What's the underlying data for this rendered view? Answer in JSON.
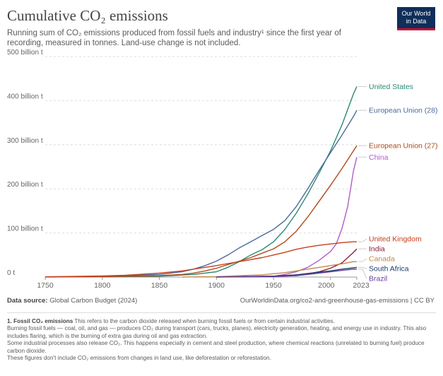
{
  "header": {
    "title": "Cumulative CO₂ emissions",
    "subtitle": "Running sum of CO₂ emissions produced from fossil fuels and industry¹ since the first year of recording, measured in tonnes. Land-use change is not included.",
    "logo_line1": "Our World",
    "logo_line2": "in Data",
    "logo_bg": "#0f2e5a",
    "logo_accent": "#c8102e"
  },
  "footer": {
    "source_label": "Data source:",
    "source_text": "Global Carbon Budget (2024)",
    "credit": "OurWorldinData.org/co2-and-greenhouse-gas-emissions | CC BY",
    "footnote_title": "1. Fossil CO₂ emissions",
    "footnote_lines": [
      "This refers to the carbon dioxide released when burning fossil fuels or from certain industrial activities.",
      "Burning fossil fuels — coal, oil, and gas — produces CO₂ during transport (cars, trucks, planes), electricity generation, heating, and energy use in industry. This also includes flaring, which is the burning of extra gas during oil and gas extraction.",
      "Some industrial processes also release CO₂. This happens especially in cement and steel production, where chemical reactions (unrelated to burning fuel) produce carbon dioxide.",
      "These figures don't include CO₂ emissions from changes in land use, like deforestation or reforestation."
    ]
  },
  "chart_data": {
    "type": "line",
    "title": "Cumulative CO₂ emissions",
    "xlabel": "",
    "ylabel": "",
    "xlim": [
      1750,
      2023
    ],
    "ylim": [
      0,
      500
    ],
    "x_ticks": [
      1750,
      1800,
      1850,
      1900,
      1950,
      2000,
      2023
    ],
    "y_ticks": [
      0,
      100,
      200,
      300,
      400,
      500
    ],
    "y_tick_labels": [
      "0 t",
      "100 billion t",
      "200 billion t",
      "300 billion t",
      "400 billion t",
      "500 billion t"
    ],
    "y_unit": "billion t",
    "grid": "horizontal dotted",
    "legend": "end-of-line labels on right",
    "series": [
      {
        "name": "United States",
        "color": "#2a8a73",
        "points": [
          [
            1800,
            0.5
          ],
          [
            1850,
            2
          ],
          [
            1880,
            6
          ],
          [
            1900,
            12
          ],
          [
            1910,
            22
          ],
          [
            1920,
            35
          ],
          [
            1930,
            50
          ],
          [
            1940,
            62
          ],
          [
            1950,
            80
          ],
          [
            1960,
            108
          ],
          [
            1970,
            145
          ],
          [
            1980,
            188
          ],
          [
            1990,
            236
          ],
          [
            2000,
            286
          ],
          [
            2010,
            345
          ],
          [
            2020,
            415
          ],
          [
            2023,
            432
          ]
        ]
      },
      {
        "name": "European Union (28)",
        "color": "#4c6a9c",
        "points": [
          [
            1750,
            0.5
          ],
          [
            1800,
            1.5
          ],
          [
            1850,
            6
          ],
          [
            1870,
            12
          ],
          [
            1880,
            18
          ],
          [
            1890,
            26
          ],
          [
            1900,
            36
          ],
          [
            1910,
            50
          ],
          [
            1920,
            66
          ],
          [
            1930,
            80
          ],
          [
            1940,
            94
          ],
          [
            1950,
            108
          ],
          [
            1960,
            128
          ],
          [
            1970,
            160
          ],
          [
            1980,
            200
          ],
          [
            1990,
            242
          ],
          [
            2000,
            282
          ],
          [
            2010,
            322
          ],
          [
            2020,
            364
          ],
          [
            2023,
            378
          ]
        ]
      },
      {
        "name": "European Union (27)",
        "color": "#b04a1c",
        "points": [
          [
            1750,
            0.2
          ],
          [
            1800,
            1
          ],
          [
            1850,
            3
          ],
          [
            1870,
            6
          ],
          [
            1880,
            9
          ],
          [
            1890,
            14
          ],
          [
            1900,
            20
          ],
          [
            1910,
            28
          ],
          [
            1920,
            36
          ],
          [
            1930,
            44
          ],
          [
            1940,
            54
          ],
          [
            1950,
            64
          ],
          [
            1960,
            80
          ],
          [
            1970,
            104
          ],
          [
            1980,
            136
          ],
          [
            1990,
            172
          ],
          [
            2000,
            208
          ],
          [
            2010,
            246
          ],
          [
            2020,
            286
          ],
          [
            2023,
            298
          ]
        ]
      },
      {
        "name": "China",
        "color": "#b15cc7",
        "points": [
          [
            1900,
            0.1
          ],
          [
            1930,
            0.5
          ],
          [
            1950,
            2
          ],
          [
            1960,
            6
          ],
          [
            1970,
            12
          ],
          [
            1980,
            22
          ],
          [
            1990,
            38
          ],
          [
            2000,
            58
          ],
          [
            2005,
            75
          ],
          [
            2010,
            110
          ],
          [
            2015,
            160
          ],
          [
            2020,
            240
          ],
          [
            2023,
            272
          ]
        ]
      },
      {
        "name": "United Kingdom",
        "color": "#c4411d",
        "points": [
          [
            1750,
            0.5
          ],
          [
            1800,
            2.5
          ],
          [
            1820,
            4
          ],
          [
            1850,
            9
          ],
          [
            1870,
            14
          ],
          [
            1880,
            18
          ],
          [
            1900,
            26
          ],
          [
            1920,
            35
          ],
          [
            1940,
            44
          ],
          [
            1950,
            50
          ],
          [
            1960,
            56
          ],
          [
            1970,
            63
          ],
          [
            1980,
            68
          ],
          [
            1990,
            72
          ],
          [
            2000,
            75
          ],
          [
            2010,
            78
          ],
          [
            2020,
            80
          ],
          [
            2023,
            80
          ]
        ]
      },
      {
        "name": "India",
        "color": "#8a1e3a",
        "points": [
          [
            1900,
            0.3
          ],
          [
            1950,
            2
          ],
          [
            1970,
            5
          ],
          [
            1980,
            7
          ],
          [
            1990,
            12
          ],
          [
            2000,
            20
          ],
          [
            2010,
            32
          ],
          [
            2020,
            56
          ],
          [
            2023,
            64
          ]
        ]
      },
      {
        "name": "Canada",
        "color": "#c2894b",
        "points": [
          [
            1870,
            0.2
          ],
          [
            1900,
            1
          ],
          [
            1920,
            3
          ],
          [
            1940,
            5
          ],
          [
            1960,
            10
          ],
          [
            1970,
            14
          ],
          [
            1980,
            18
          ],
          [
            1990,
            22
          ],
          [
            2000,
            26
          ],
          [
            2010,
            30
          ],
          [
            2020,
            35
          ],
          [
            2023,
            35
          ]
        ]
      },
      {
        "name": "South Africa",
        "color": "#1c3d68",
        "points": [
          [
            1900,
            0.2
          ],
          [
            1950,
            2
          ],
          [
            1970,
            5
          ],
          [
            1980,
            8
          ],
          [
            1990,
            11
          ],
          [
            2000,
            14
          ],
          [
            2010,
            18
          ],
          [
            2020,
            21
          ],
          [
            2023,
            22
          ]
        ]
      },
      {
        "name": "Brazil",
        "color": "#6b3da0",
        "points": [
          [
            1900,
            0.1
          ],
          [
            1950,
            1
          ],
          [
            1970,
            3
          ],
          [
            1980,
            6
          ],
          [
            1990,
            9
          ],
          [
            2000,
            12
          ],
          [
            2010,
            15
          ],
          [
            2020,
            18
          ],
          [
            2023,
            18
          ]
        ]
      }
    ],
    "end_labels": [
      {
        "name": "United States",
        "value": 432
      },
      {
        "name": "European Union (28)",
        "value": 378
      },
      {
        "name": "European Union (27)",
        "value": 298
      },
      {
        "name": "China",
        "value": 272
      },
      {
        "name": "United Kingdom",
        "value": 80
      },
      {
        "name": "India",
        "value": 64
      },
      {
        "name": "Canada",
        "value": 35
      },
      {
        "name": "South Africa",
        "value": 22
      },
      {
        "name": "Brazil",
        "value": 18
      }
    ]
  }
}
